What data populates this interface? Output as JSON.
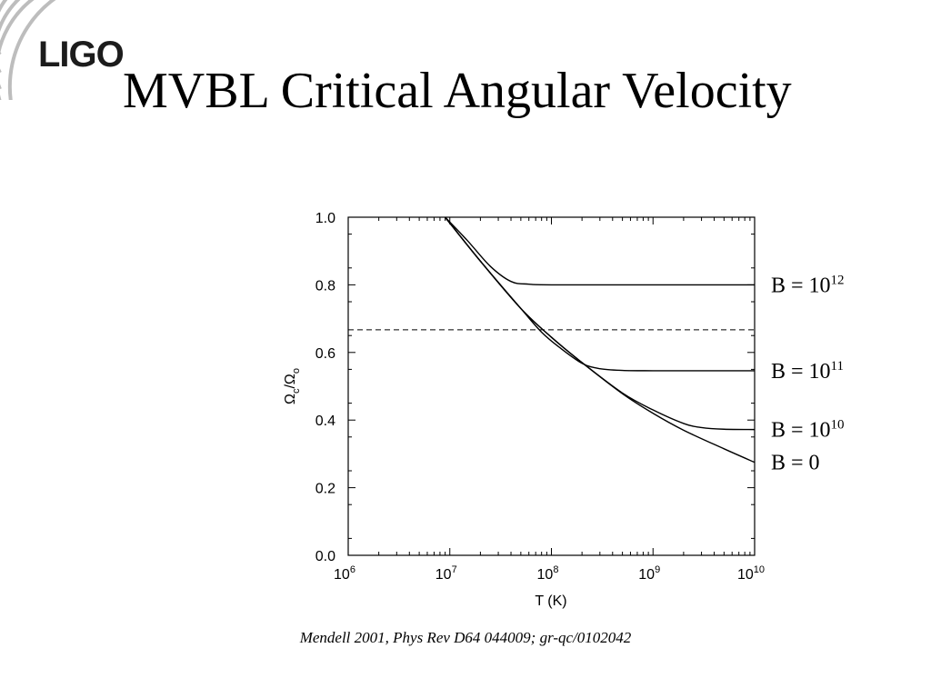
{
  "logo": {
    "text": "LIGO",
    "icon": "ligo-arcs-icon"
  },
  "title": "MVBL Critical Angular Velocity",
  "caption": "Mendell 2001, Phys Rev D64 044009; gr-qc/0102042",
  "chart_data": {
    "type": "line",
    "xlabel": "T (K)",
    "ylabel": "Ωc/Ωo",
    "xscale": "log",
    "xlim": [
      1000000,
      10000000000
    ],
    "ylim": [
      0,
      1
    ],
    "x_ticks": [
      {
        "value": 1000000,
        "base": "10",
        "exp": "6"
      },
      {
        "value": 10000000,
        "base": "10",
        "exp": "7"
      },
      {
        "value": 100000000,
        "base": "10",
        "exp": "8"
      },
      {
        "value": 1000000000,
        "base": "10",
        "exp": "9"
      },
      {
        "value": 10000000000,
        "base": "10",
        "exp": "10"
      }
    ],
    "y_ticks": [
      "0.0",
      "0.2",
      "0.4",
      "0.6",
      "0.8",
      "1.0"
    ],
    "grid": false,
    "legend": "labels at right end of each curve",
    "reference_line": {
      "y": 0.667,
      "style": "dashed"
    },
    "series": [
      {
        "name": "B = 10",
        "exp": "12",
        "x": [
          9000000,
          15000000,
          25000000,
          40000000,
          60000000,
          100000000,
          1000000000,
          10000000000
        ],
        "y": [
          1.0,
          0.93,
          0.855,
          0.81,
          0.802,
          0.8,
          0.8,
          0.8
        ]
      },
      {
        "name": "B = 10",
        "exp": "11",
        "x": [
          9000000,
          20000000,
          50000000,
          80000000,
          120000000,
          200000000,
          300000000,
          500000000,
          1000000000,
          10000000000
        ],
        "y": [
          1.0,
          0.87,
          0.73,
          0.66,
          0.615,
          0.568,
          0.552,
          0.547,
          0.546,
          0.546
        ]
      },
      {
        "name": "B = 10",
        "exp": "10",
        "x": [
          9000000,
          20000000,
          50000000,
          100000000,
          200000000,
          500000000,
          1000000000,
          2000000000,
          3000000000,
          5000000000,
          10000000000
        ],
        "y": [
          1.0,
          0.87,
          0.73,
          0.645,
          0.57,
          0.48,
          0.43,
          0.39,
          0.378,
          0.373,
          0.372
        ]
      },
      {
        "name": "B = 0",
        "x": [
          9000000,
          20000000,
          50000000,
          100000000,
          200000000,
          500000000,
          1000000000,
          2000000000,
          5000000000,
          10000000000
        ],
        "y": [
          1.0,
          0.87,
          0.73,
          0.645,
          0.57,
          0.478,
          0.42,
          0.37,
          0.315,
          0.275
        ]
      }
    ]
  }
}
